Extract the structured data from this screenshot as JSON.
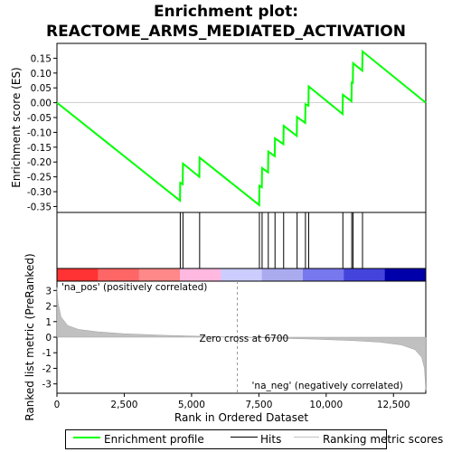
{
  "chart_data": {
    "type": "line",
    "title": "Enrichment plot:",
    "subtitle": "REACTOME_ARMS_MEDIATED_ACTIVATION",
    "xlabel": "Rank in Ordered Dataset",
    "ylabel_top": "Enrichment score (ES)",
    "ylabel_bottom": "Ranked list metric (PreRanked)",
    "xlim": [
      0,
      13700
    ],
    "es_ylim": [
      -0.37,
      0.2
    ],
    "metric_ylim": [
      -3.6,
      3.6
    ],
    "x_ticks": [
      0,
      2500,
      5000,
      7500,
      10000,
      12500
    ],
    "x_tick_labels": [
      "0",
      "2,500",
      "5,000",
      "7,500",
      "10,000",
      "12,500"
    ],
    "es_ticks": [
      0.15,
      0.1,
      0.05,
      0.0,
      -0.05,
      -0.1,
      -0.15,
      -0.2,
      -0.25,
      -0.3,
      -0.35
    ],
    "es_tick_labels": [
      "0.15",
      "0.10",
      "0.05",
      "0.00",
      "-0.05",
      "-0.10",
      "-0.15",
      "-0.20",
      "-0.25",
      "-0.30",
      "-0.35"
    ],
    "metric_ticks": [
      3,
      2,
      1,
      0,
      -1,
      -2,
      -3
    ],
    "metric_tick_labels": [
      "3",
      "2",
      "1",
      "0",
      "-1",
      "-2",
      "-3"
    ],
    "hits": [
      4580,
      4680,
      5300,
      7520,
      7620,
      7850,
      8100,
      8420,
      8920,
      9230,
      9350,
      10620,
      10950,
      11000,
      11350
    ],
    "es_points": [
      [
        0,
        0.0
      ],
      [
        4570,
        -0.33
      ],
      [
        4580,
        -0.27
      ],
      [
        4670,
        -0.275
      ],
      [
        4680,
        -0.205
      ],
      [
        5290,
        -0.25
      ],
      [
        5300,
        -0.185
      ],
      [
        7510,
        -0.345
      ],
      [
        7520,
        -0.28
      ],
      [
        7610,
        -0.285
      ],
      [
        7620,
        -0.22
      ],
      [
        7840,
        -0.235
      ],
      [
        7850,
        -0.165
      ],
      [
        8090,
        -0.18
      ],
      [
        8100,
        -0.12
      ],
      [
        8410,
        -0.14
      ],
      [
        8420,
        -0.078
      ],
      [
        8910,
        -0.112
      ],
      [
        8920,
        -0.048
      ],
      [
        9220,
        -0.068
      ],
      [
        9230,
        -0.005
      ],
      [
        9340,
        -0.01
      ],
      [
        9350,
        0.055
      ],
      [
        10610,
        -0.038
      ],
      [
        10620,
        0.027
      ],
      [
        10940,
        0.005
      ],
      [
        10950,
        0.068
      ],
      [
        10990,
        0.067
      ],
      [
        11000,
        0.133
      ],
      [
        11340,
        0.108
      ],
      [
        11350,
        0.173
      ],
      [
        13700,
        0.0
      ]
    ],
    "metric_curve": [
      [
        0,
        3.2
      ],
      [
        40,
        2.2
      ],
      [
        150,
        1.3
      ],
      [
        400,
        0.75
      ],
      [
        800,
        0.5
      ],
      [
        1500,
        0.35
      ],
      [
        2500,
        0.22
      ],
      [
        4000,
        0.12
      ],
      [
        5500,
        0.05
      ],
      [
        6700,
        0.0
      ],
      [
        8000,
        -0.06
      ],
      [
        9500,
        -0.12
      ],
      [
        11000,
        -0.22
      ],
      [
        12000,
        -0.32
      ],
      [
        12800,
        -0.5
      ],
      [
        13300,
        -0.8
      ],
      [
        13550,
        -1.3
      ],
      [
        13650,
        -2.0
      ],
      [
        13700,
        -3.4
      ]
    ],
    "zero_cross": 6700,
    "annotations": {
      "zero_cross_text": "Zero cross at 6700",
      "pos_text": "'na_pos' (positively correlated)",
      "neg_text": "'na_neg' (negatively correlated)"
    },
    "legend": [
      {
        "label": "Enrichment profile",
        "color": "#00ff00"
      },
      {
        "label": "Hits",
        "color": "#000000"
      },
      {
        "label": "Ranking metric scores",
        "color": "#c0c0c0"
      }
    ],
    "colors": {
      "es_line": "#00ff00",
      "pos_text": "#cc0000",
      "neg_text": "#0000cc",
      "metric_fill": "#c0c0c0",
      "heat_bar": [
        "#ff3333",
        "#ff6666",
        "#ff8888",
        "#ffb8e0",
        "#ccccff",
        "#aaaaee",
        "#7777ee",
        "#4444dd",
        "#0000aa"
      ]
    }
  }
}
